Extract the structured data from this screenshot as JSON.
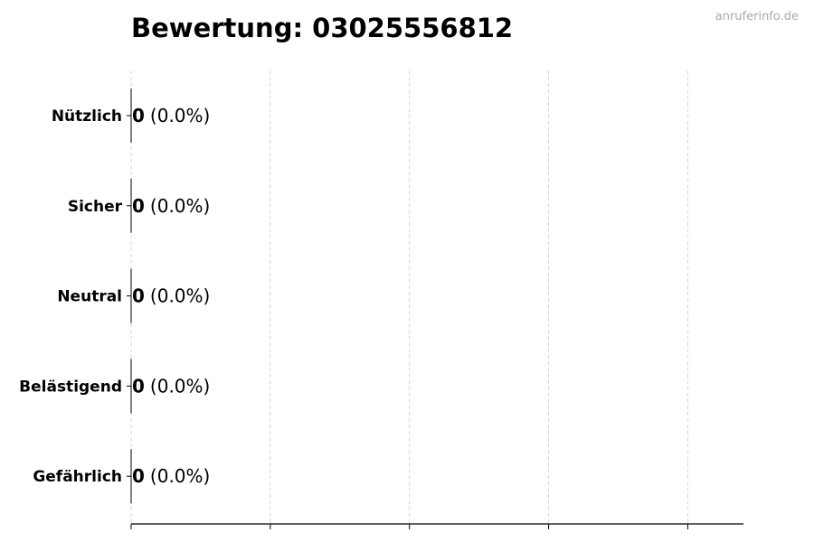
{
  "chart_data": {
    "type": "bar",
    "orientation": "horizontal",
    "title": "Bewertung: 03025556812",
    "watermark": "anruferinfo.de",
    "categories": [
      "Nützlich",
      "Sicher",
      "Neutral",
      "Belästigend",
      "Gefährlich"
    ],
    "values": [
      0,
      0,
      0,
      0,
      0
    ],
    "labels": [
      {
        "count": "0",
        "pct": "(0.0%)"
      },
      {
        "count": "0",
        "pct": "(0.0%)"
      },
      {
        "count": "0",
        "pct": "(0.0%)"
      },
      {
        "count": "0",
        "pct": "(0.0%)"
      },
      {
        "count": "0",
        "pct": "(0.0%)"
      }
    ],
    "xlim": [
      0,
      4.4
    ],
    "xticks": [
      0,
      1,
      2,
      3,
      4
    ],
    "xtick_labels_shown": false,
    "grid": "x-dashed",
    "colors": {
      "bar_edge": "#000000",
      "grid": "#cccccc",
      "watermark": "#aaaaaa"
    }
  }
}
